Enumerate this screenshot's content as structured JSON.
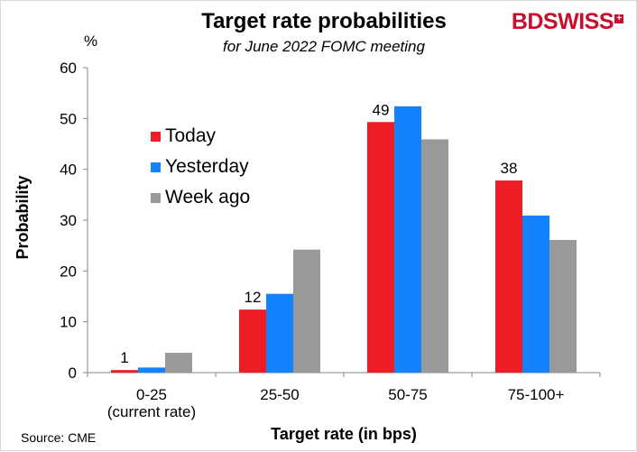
{
  "brand": {
    "logo_part1": "BD",
    "logo_part2": "SWISS",
    "logo_mark": "+",
    "color": "#c8102e"
  },
  "source": "Source: CME",
  "chart_data": {
    "type": "bar",
    "title": "Target rate probabilities",
    "subtitle": "for June 2022 FOMC meeting",
    "unit_label": "%",
    "xlabel": "Target rate (in bps)",
    "ylabel": "Probability",
    "ylim": [
      0,
      60
    ],
    "yticks": [
      0,
      10,
      20,
      30,
      40,
      50,
      60
    ],
    "grid": false,
    "legend_position": "upper-left",
    "categories": [
      [
        "0-25",
        "(current rate)"
      ],
      [
        "25-50"
      ],
      [
        "50-75"
      ],
      [
        "75-100+"
      ]
    ],
    "series": [
      {
        "name": "Today",
        "color": "#ee1c25",
        "values": [
          0.5,
          12.4,
          49.3,
          37.8
        ]
      },
      {
        "name": "Yesterday",
        "color": "#1382fc",
        "values": [
          1.0,
          15.5,
          52.4,
          30.9
        ]
      },
      {
        "name": "Week ago",
        "color": "#999999",
        "values": [
          3.9,
          24.2,
          45.9,
          26.1
        ]
      }
    ],
    "data_labels": [
      {
        "category_index": 0,
        "series_index": 0,
        "text": "1"
      },
      {
        "category_index": 1,
        "series_index": 0,
        "text": "12"
      },
      {
        "category_index": 2,
        "series_index": 0,
        "text": "49"
      },
      {
        "category_index": 3,
        "series_index": 0,
        "text": "38"
      }
    ]
  }
}
